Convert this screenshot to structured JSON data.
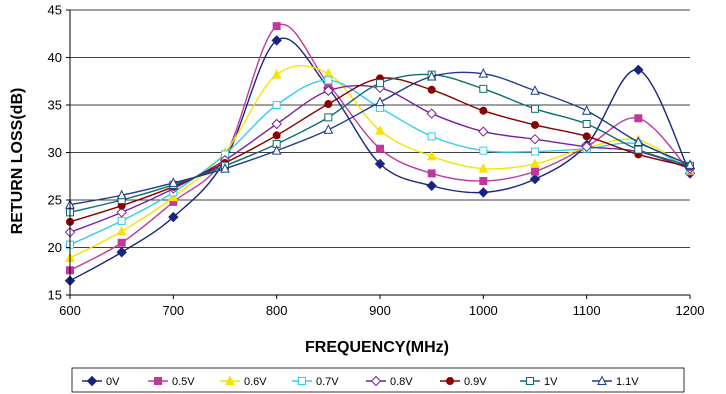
{
  "chart_data": {
    "type": "line",
    "title": "",
    "xlabel": "FREQUENCY(MHz)",
    "ylabel": "RETURN LOSS(dB)",
    "xlim": [
      600,
      1200
    ],
    "ylim": [
      15,
      45
    ],
    "xticks": [
      600,
      700,
      800,
      900,
      1000,
      1100,
      1200
    ],
    "yticks": [
      15,
      20,
      25,
      30,
      35,
      40,
      45
    ],
    "grid": "horizontal",
    "legend_position": "bottom",
    "x": [
      600,
      650,
      700,
      750,
      800,
      850,
      900,
      950,
      1000,
      1050,
      1100,
      1150,
      1200
    ],
    "series": [
      {
        "name": "0V",
        "color": "#1a237e",
        "marker": "diamond-filled",
        "values": [
          16.5,
          19.5,
          23.2,
          29.2,
          41.8,
          36.8,
          28.8,
          26.5,
          25.8,
          27.2,
          30.8,
          38.7,
          27.8
        ]
      },
      {
        "name": "0.5V",
        "color": "#c0399a",
        "marker": "square-filled",
        "values": [
          17.6,
          20.5,
          24.8,
          29.6,
          43.3,
          37.2,
          30.4,
          27.8,
          27.0,
          28.0,
          30.6,
          33.6,
          28.0
        ]
      },
      {
        "name": "0.6V",
        "color": "#f5e400",
        "marker": "triangle-filled",
        "values": [
          18.9,
          21.7,
          25.3,
          30.0,
          38.2,
          38.3,
          32.3,
          29.6,
          28.3,
          28.8,
          30.5,
          31.3,
          28.1
        ]
      },
      {
        "name": "0.7V",
        "color": "#33ccee",
        "marker": "square-open",
        "values": [
          20.3,
          22.8,
          25.8,
          29.8,
          35.0,
          37.6,
          34.7,
          31.7,
          30.2,
          30.1,
          30.4,
          30.9,
          28.2
        ]
      },
      {
        "name": "0.8V",
        "color": "#7b1fa2",
        "marker": "diamond-open",
        "values": [
          21.6,
          23.7,
          26.2,
          29.2,
          33.0,
          36.5,
          36.8,
          34.1,
          32.2,
          31.4,
          30.6,
          30.1,
          28.3
        ]
      },
      {
        "name": "0.9V",
        "color": "#8b0000",
        "marker": "circle-filled",
        "values": [
          22.7,
          24.4,
          26.4,
          28.9,
          31.8,
          35.1,
          37.8,
          36.6,
          34.4,
          32.9,
          31.7,
          29.8,
          28.5
        ]
      },
      {
        "name": "1V",
        "color": "#0b6e6e",
        "marker": "square-open",
        "values": [
          23.7,
          25.0,
          26.6,
          28.6,
          30.9,
          33.7,
          37.3,
          38.2,
          36.7,
          34.6,
          33.0,
          30.3,
          28.6
        ]
      },
      {
        "name": "1.1V",
        "color": "#1e3a8a",
        "marker": "triangle-open",
        "values": [
          24.5,
          25.5,
          26.8,
          28.3,
          30.2,
          32.4,
          35.3,
          38.0,
          38.3,
          36.5,
          34.4,
          31.1,
          28.7
        ]
      }
    ]
  }
}
